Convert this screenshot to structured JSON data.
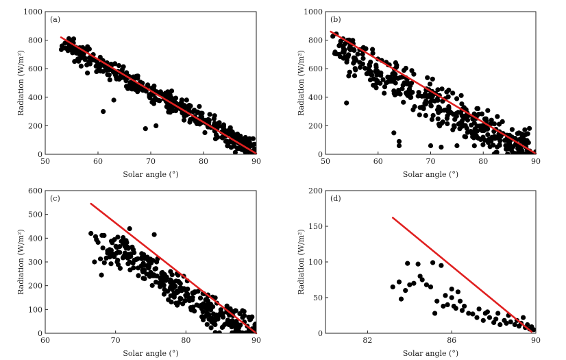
{
  "chart_data": [
    {
      "type": "scatter",
      "panel_label": "(a)",
      "xlabel": "Solar angle (°)",
      "ylabel": "Radiation (W/m²)",
      "xlim": [
        50,
        90
      ],
      "ylim": [
        0,
        1000
      ],
      "xticks": [
        50,
        60,
        70,
        80,
        90
      ],
      "yticks": [
        0,
        200,
        400,
        600,
        800,
        1000
      ],
      "fit_line": {
        "x": [
          53,
          90
        ],
        "y": [
          820,
          5
        ],
        "color": "#e02020"
      },
      "marker_color": "#000000",
      "cloud": [
        [
          53,
          780
        ],
        [
          54,
          760
        ],
        [
          55,
          740
        ],
        [
          56,
          715
        ],
        [
          57,
          700
        ],
        [
          58,
          680
        ],
        [
          59,
          660
        ],
        [
          60,
          640
        ],
        [
          62,
          600
        ],
        [
          64,
          560
        ],
        [
          66,
          520
        ],
        [
          68,
          470
        ],
        [
          70,
          430
        ],
        [
          72,
          395
        ],
        [
          74,
          360
        ],
        [
          76,
          320
        ],
        [
          78,
          280
        ],
        [
          80,
          240
        ],
        [
          82,
          190
        ],
        [
          84,
          140
        ],
        [
          86,
          100
        ],
        [
          88,
          55
        ],
        [
          89,
          30
        ],
        [
          90,
          15
        ]
      ],
      "spread": 90,
      "n_points": 420,
      "seed": 11,
      "outliers": [
        [
          61,
          300
        ],
        [
          69,
          180
        ],
        [
          71,
          200
        ],
        [
          63,
          380
        ],
        [
          58,
          570
        ]
      ]
    },
    {
      "type": "scatter",
      "panel_label": "(b)",
      "xlabel": "Solar angle (°)",
      "ylabel": "Radiation (W/m²)",
      "xlim": [
        50,
        90
      ],
      "ylim": [
        0,
        1000
      ],
      "xticks": [
        50,
        60,
        70,
        80,
        90
      ],
      "yticks": [
        0,
        200,
        400,
        600,
        800,
        1000
      ],
      "fit_line": {
        "x": [
          51,
          90
        ],
        "y": [
          860,
          5
        ],
        "color": "#e02020"
      },
      "marker_color": "#000000",
      "cloud": [
        [
          51,
          800
        ],
        [
          52,
          760
        ],
        [
          53,
          730
        ],
        [
          55,
          680
        ],
        [
          57,
          640
        ],
        [
          59,
          600
        ],
        [
          61,
          560
        ],
        [
          63,
          520
        ],
        [
          65,
          480
        ],
        [
          67,
          440
        ],
        [
          69,
          400
        ],
        [
          71,
          360
        ],
        [
          73,
          320
        ],
        [
          75,
          280
        ],
        [
          77,
          240
        ],
        [
          79,
          200
        ],
        [
          81,
          160
        ],
        [
          83,
          120
        ],
        [
          85,
          85
        ],
        [
          87,
          50
        ],
        [
          89,
          20
        ],
        [
          90,
          10
        ]
      ],
      "spread": 170,
      "n_points": 420,
      "seed": 23,
      "outliers": [
        [
          54,
          360
        ],
        [
          64,
          90
        ],
        [
          64,
          60
        ],
        [
          70,
          60
        ],
        [
          72,
          50
        ],
        [
          75,
          60
        ],
        [
          63,
          150
        ]
      ]
    },
    {
      "type": "scatter",
      "panel_label": "(c)",
      "xlabel": "Solar angle (°)",
      "ylabel": "Radiation (W/m²)",
      "xlim": [
        60,
        90
      ],
      "ylim": [
        0,
        600
      ],
      "xticks": [
        60,
        70,
        80,
        90
      ],
      "yticks": [
        0,
        100,
        200,
        300,
        400,
        500,
        600
      ],
      "fit_line": {
        "x": [
          66.5,
          90
        ],
        "y": [
          545,
          0
        ],
        "color": "#e02020"
      },
      "marker_color": "#000000",
      "cloud": [
        [
          67,
          380
        ],
        [
          68,
          360
        ],
        [
          69,
          345
        ],
        [
          70,
          340
        ],
        [
          71,
          330
        ],
        [
          72,
          315
        ],
        [
          73,
          300
        ],
        [
          74,
          285
        ],
        [
          75,
          265
        ],
        [
          76,
          245
        ],
        [
          77,
          225
        ],
        [
          78,
          205
        ],
        [
          79,
          185
        ],
        [
          80,
          165
        ],
        [
          81,
          145
        ],
        [
          82,
          125
        ],
        [
          83,
          105
        ],
        [
          84,
          85
        ],
        [
          85,
          65
        ],
        [
          86,
          48
        ],
        [
          87,
          33
        ],
        [
          88,
          20
        ],
        [
          89,
          10
        ],
        [
          90,
          5
        ]
      ],
      "spread": 85,
      "n_points": 330,
      "seed": 37,
      "outliers": [
        [
          66.5,
          420
        ],
        [
          67,
          300
        ],
        [
          68,
          245
        ],
        [
          75.5,
          415
        ],
        [
          72,
          440
        ]
      ]
    },
    {
      "type": "scatter",
      "panel_label": "(d)",
      "xlabel": "Solar angle (°)",
      "ylabel": "Radiation (W/m²)",
      "xlim": [
        80,
        90
      ],
      "ylim": [
        0,
        200
      ],
      "xticks": [
        82,
        86,
        90
      ],
      "yticks": [
        0,
        50,
        100,
        150,
        200
      ],
      "fit_line": {
        "x": [
          83.2,
          89.8
        ],
        "y": [
          162,
          2
        ],
        "color": "#e02020"
      },
      "marker_color": "#000000",
      "points": [
        [
          83.2,
          65
        ],
        [
          83.5,
          72
        ],
        [
          83.6,
          48
        ],
        [
          83.8,
          60
        ],
        [
          83.9,
          98
        ],
        [
          84,
          68
        ],
        [
          84.2,
          70
        ],
        [
          84.4,
          97
        ],
        [
          84.5,
          80
        ],
        [
          84.6,
          75
        ],
        [
          84.8,
          68
        ],
        [
          85,
          65
        ],
        [
          85.1,
          99
        ],
        [
          85.2,
          28
        ],
        [
          85.3,
          45
        ],
        [
          85.5,
          95
        ],
        [
          85.6,
          38
        ],
        [
          85.7,
          53
        ],
        [
          85.8,
          40
        ],
        [
          86,
          62
        ],
        [
          86,
          50
        ],
        [
          86.1,
          38
        ],
        [
          86.2,
          35
        ],
        [
          86.3,
          58
        ],
        [
          86.4,
          45
        ],
        [
          86.5,
          32
        ],
        [
          86.6,
          38
        ],
        [
          86.8,
          28
        ],
        [
          87,
          27
        ],
        [
          87.2,
          22
        ],
        [
          87.3,
          34
        ],
        [
          87.5,
          18
        ],
        [
          87.6,
          28
        ],
        [
          87.7,
          30
        ],
        [
          87.8,
          22
        ],
        [
          88,
          15
        ],
        [
          88.1,
          20
        ],
        [
          88.2,
          28
        ],
        [
          88.3,
          12
        ],
        [
          88.5,
          18
        ],
        [
          88.6,
          14
        ],
        [
          88.7,
          25
        ],
        [
          88.8,
          16
        ],
        [
          89,
          12
        ],
        [
          89.1,
          18
        ],
        [
          89.2,
          10
        ],
        [
          89.3,
          14
        ],
        [
          89.4,
          22
        ],
        [
          89.5,
          8
        ],
        [
          89.6,
          12
        ],
        [
          89.7,
          6
        ],
        [
          89.8,
          9
        ],
        [
          89.9,
          5
        ]
      ]
    }
  ]
}
